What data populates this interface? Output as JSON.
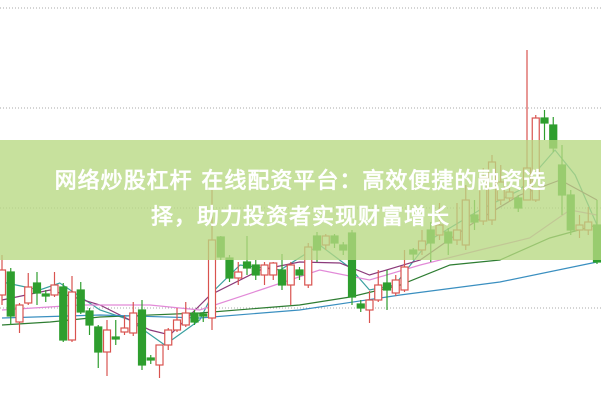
{
  "banner": {
    "line1": "网络炒股杠杆 在线配资平台：高效便捷的融资选",
    "line2": "择，助力投资者实现财富增长"
  },
  "chart_data": {
    "type": "candlestick",
    "ylim": [
      0,
      400
    ],
    "grid": true,
    "gridlines": [
      392,
      292,
      192,
      92
    ],
    "colors": {
      "up": "#d9534f",
      "down": "#2e9e2e",
      "banner": "#b7d882",
      "grid": "#aaaaaa"
    },
    "candles": [
      [
        105,
        130,
        145,
        95
      ],
      [
        128,
        84,
        132,
        75
      ],
      [
        78,
        95,
        97,
        67
      ],
      [
        97,
        113,
        127,
        95
      ],
      [
        117,
        107,
        128,
        95
      ],
      [
        106,
        104,
        110,
        98
      ],
      [
        105,
        115,
        128,
        103
      ],
      [
        113,
        60,
        117,
        58
      ],
      [
        60,
        108,
        124,
        58
      ],
      [
        110,
        88,
        118,
        86
      ],
      [
        89,
        75,
        92,
        65
      ],
      [
        73,
        48,
        75,
        32
      ],
      [
        48,
        70,
        80,
        24
      ],
      [
        63,
        61,
        80,
        55
      ],
      [
        68,
        72,
        85,
        65
      ],
      [
        67,
        87,
        98,
        64
      ],
      [
        90,
        35,
        100,
        30
      ],
      [
        42,
        40,
        45,
        36
      ],
      [
        35,
        55,
        55,
        22
      ],
      [
        55,
        70,
        72,
        50
      ],
      [
        70,
        80,
        92,
        68
      ],
      [
        75,
        87,
        98,
        73
      ],
      [
        87,
        78,
        90,
        75
      ],
      [
        86,
        84,
        88,
        78
      ],
      [
        82,
        160,
        210,
        70
      ],
      [
        163,
        143,
        164,
        140
      ],
      [
        142,
        122,
        145,
        118
      ],
      [
        122,
        128,
        138,
        115
      ],
      [
        138,
        132,
        164,
        125
      ],
      [
        135,
        125,
        140,
        120
      ],
      [
        125,
        135,
        138,
        115
      ],
      [
        125,
        137,
        138,
        120
      ],
      [
        130,
        115,
        146,
        110
      ],
      [
        115,
        135,
        138,
        95
      ],
      [
        130,
        125,
        133,
        120
      ],
      [
        115,
        153,
        157,
        112
      ],
      [
        164,
        150,
        168,
        138
      ],
      [
        155,
        164,
        166,
        150
      ],
      [
        164,
        157,
        166,
        152
      ],
      [
        155,
        150,
        158,
        145
      ],
      [
        167,
        103,
        170,
        95
      ],
      [
        96,
        92,
        100,
        88
      ],
      [
        90,
        100,
        109,
        77
      ],
      [
        100,
        115,
        130,
        98
      ],
      [
        117,
        110,
        130,
        90
      ],
      [
        107,
        120,
        125,
        104
      ],
      [
        110,
        133,
        150,
        108
      ],
      [
        150,
        146,
        152,
        140
      ],
      [
        150,
        159,
        170,
        145
      ],
      [
        170,
        157,
        178,
        138
      ],
      [
        165,
        175,
        197,
        160
      ],
      [
        168,
        157,
        172,
        145
      ],
      [
        160,
        170,
        197,
        155
      ],
      [
        155,
        200,
        215,
        150
      ],
      [
        185,
        178,
        200,
        170
      ],
      [
        179,
        222,
        232,
        175
      ],
      [
        180,
        238,
        245,
        175
      ],
      [
        200,
        218,
        235,
        195
      ],
      [
        202,
        208,
        212,
        198
      ],
      [
        202,
        192,
        205,
        188
      ],
      [
        200,
        232,
        350,
        200
      ],
      [
        200,
        282,
        285,
        198
      ],
      [
        282,
        277,
        290,
        260
      ],
      [
        275,
        252,
        283,
        248
      ],
      [
        235,
        205,
        255,
        185
      ],
      [
        205,
        170,
        210,
        165
      ],
      [
        170,
        175,
        185,
        162
      ],
      [
        170,
        178,
        193,
        165
      ],
      [
        175,
        138,
        200,
        136
      ]
    ],
    "moving_averages": [
      {
        "color": "#3aa0a0",
        "points": [
          [
            0,
            118
          ],
          [
            4.3,
            110
          ],
          [
            6.6,
            117
          ],
          [
            11.2,
            90
          ],
          [
            14.6,
            80
          ],
          [
            18.6,
            55
          ],
          [
            22.6,
            80
          ],
          [
            24.3,
            110
          ],
          [
            27.2,
            135
          ],
          [
            31.8,
            130
          ],
          [
            36.3,
            155
          ],
          [
            39.8,
            132
          ],
          [
            42,
            110
          ],
          [
            44.9,
            115
          ],
          [
            48.9,
            160
          ],
          [
            54.6,
            190
          ],
          [
            59.2,
            210
          ],
          [
            63.2,
            250
          ],
          [
            65.5,
            225
          ],
          [
            68,
            175
          ]
        ]
      },
      {
        "color": "#8b3a7a",
        "points": [
          [
            0,
            100
          ],
          [
            5.5,
            110
          ],
          [
            11.2,
            95
          ],
          [
            16.9,
            70
          ],
          [
            19.2,
            65
          ],
          [
            23.8,
            105
          ],
          [
            29.5,
            130
          ],
          [
            34,
            138
          ],
          [
            38.6,
            137
          ],
          [
            42,
            125
          ],
          [
            47.8,
            140
          ],
          [
            53.5,
            175
          ],
          [
            59.2,
            205
          ],
          [
            63.8,
            220
          ],
          [
            68,
            200
          ]
        ]
      },
      {
        "color": "#e28ad8",
        "points": [
          [
            0,
            90
          ],
          [
            8.9,
            95
          ],
          [
            16.9,
            95
          ],
          [
            22.6,
            90
          ],
          [
            29.5,
            110
          ],
          [
            36.3,
            130
          ],
          [
            42,
            120
          ],
          [
            47.8,
            135
          ],
          [
            54.6,
            150
          ],
          [
            60.3,
            162
          ],
          [
            64.9,
            190
          ],
          [
            68,
            185
          ]
        ]
      },
      {
        "color": "#2e7d32",
        "points": [
          [
            0,
            75
          ],
          [
            5.5,
            78
          ],
          [
            11.2,
            83
          ],
          [
            22.6,
            87
          ],
          [
            34,
            95
          ],
          [
            39.8,
            103
          ],
          [
            45.5,
            115
          ],
          [
            51.2,
            135
          ],
          [
            56.9,
            140
          ],
          [
            62.6,
            162
          ],
          [
            68,
            175
          ]
        ]
      },
      {
        "color": "#3a8fc0",
        "points": [
          [
            0,
            82
          ],
          [
            11.2,
            85
          ],
          [
            22.6,
            82
          ],
          [
            34,
            90
          ],
          [
            45.5,
            105
          ],
          [
            56.9,
            118
          ],
          [
            68,
            138
          ]
        ]
      }
    ]
  }
}
